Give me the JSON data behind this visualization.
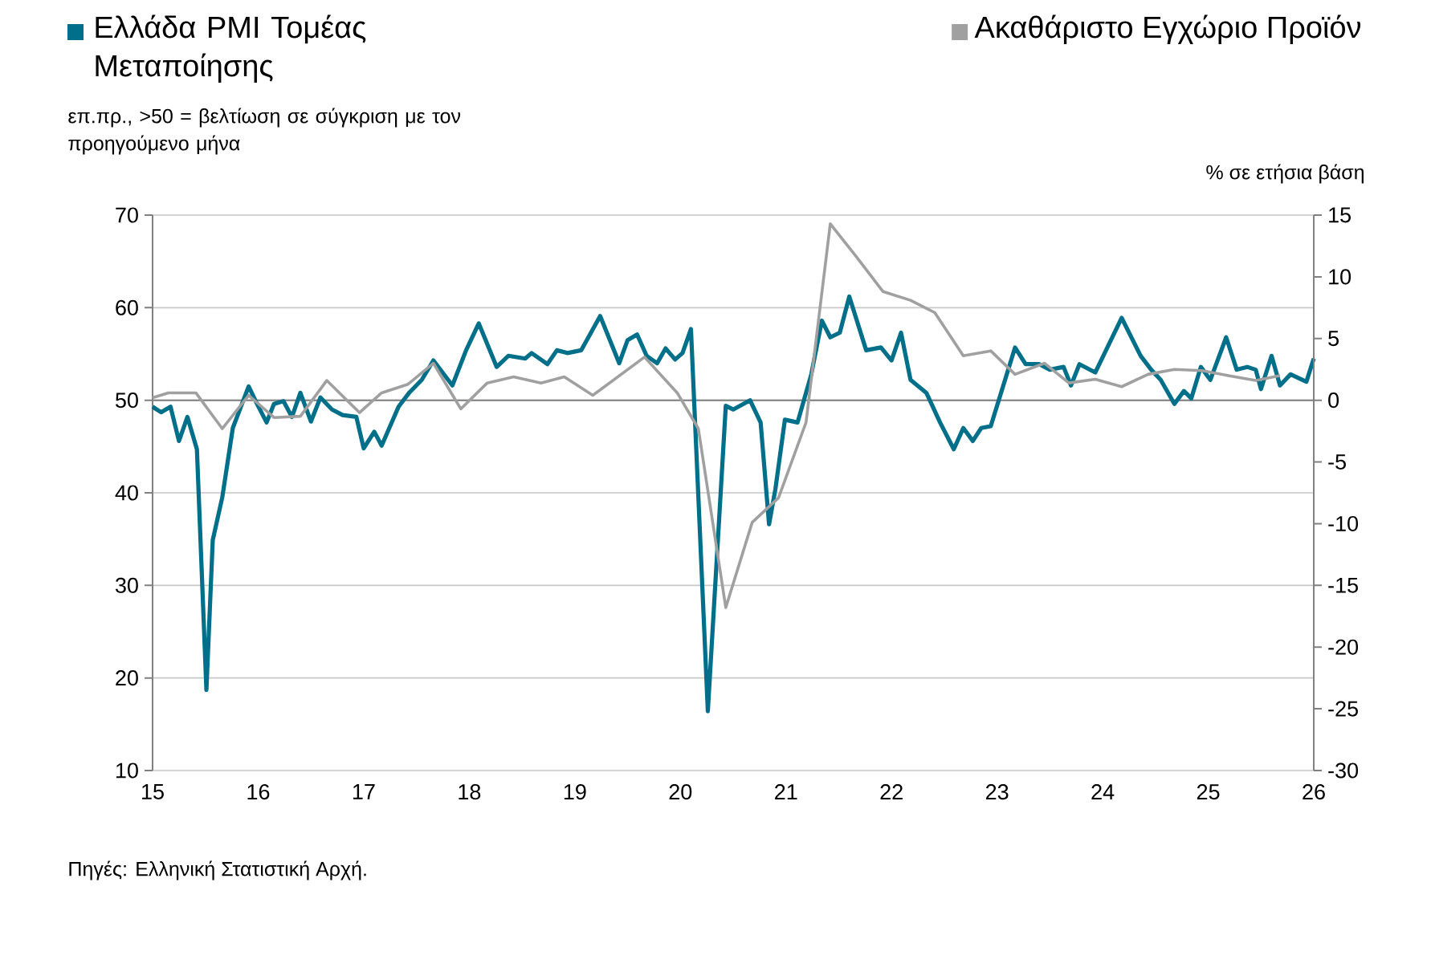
{
  "chart_data": {
    "type": "line",
    "ylabel": "επ.πρ., >50 = βελτίωση σε σύγκριση με τον προηγούμενο μήνα",
    "y2label": "% σε ετήσια βάση",
    "annotations": [
      "Πηγές: Ελληνική Στατιστική Αρχή."
    ],
    "legend": "top",
    "grid": "y",
    "line_style": "solid",
    "xlim": [
      2015,
      2026
    ],
    "xticks": [
      {
        "value": 2015,
        "label": "15"
      },
      {
        "value": 2016,
        "label": "16"
      },
      {
        "value": 2017,
        "label": "17"
      },
      {
        "value": 2018,
        "label": "18"
      },
      {
        "value": 2019,
        "label": "19"
      },
      {
        "value": 2020,
        "label": "20"
      },
      {
        "value": 2021,
        "label": "21"
      },
      {
        "value": 2022,
        "label": "22"
      },
      {
        "value": 2023,
        "label": "23"
      },
      {
        "value": 2024,
        "label": "24"
      },
      {
        "value": 2025,
        "label": "25"
      },
      {
        "value": 2026,
        "label": "26"
      }
    ],
    "ylim": [
      10,
      70
    ],
    "yticks": [
      10,
      20,
      30,
      40,
      50,
      60,
      70
    ],
    "y2lim": [
      -30,
      15
    ],
    "y2ticks": [
      -30,
      -25,
      -20,
      -15,
      -10,
      -5,
      0,
      5,
      10,
      15
    ],
    "ref_lines": [
      {
        "axis": "y",
        "value": 50,
        "color": "#808080"
      }
    ],
    "series": [
      {
        "name": "Ελλάδα PMI Τομέας Μεταποίησης",
        "color": "#006f8a",
        "x": [
          2015.0,
          2015.08,
          2015.17,
          2015.25,
          2015.33,
          2015.42,
          2015.51,
          2015.57,
          2015.66,
          2015.76,
          2015.91,
          2015.99,
          2016.08,
          2016.15,
          2016.24,
          2016.32,
          2016.4,
          2016.5,
          2016.59,
          2016.7,
          2016.8,
          2016.93,
          2017.0,
          2017.1,
          2017.17,
          2017.33,
          2017.43,
          2017.55,
          2017.66,
          2017.84,
          2017.97,
          2018.09,
          2018.26,
          2018.37,
          2018.53,
          2018.59,
          2018.74,
          2018.83,
          2018.93,
          2019.06,
          2019.24,
          2019.42,
          2019.5,
          2019.59,
          2019.68,
          2019.78,
          2019.86,
          2019.95,
          2020.02,
          2020.1,
          2020.26,
          2020.43,
          2020.5,
          2020.66,
          2020.76,
          2020.84,
          2020.9,
          2020.99,
          2021.11,
          2021.24,
          2021.34,
          2021.42,
          2021.51,
          2021.6,
          2021.76,
          2021.9,
          2022.0,
          2022.09,
          2022.18,
          2022.33,
          2022.46,
          2022.59,
          2022.68,
          2022.77,
          2022.85,
          2022.94,
          2023.17,
          2023.27,
          2023.4,
          2023.5,
          2023.63,
          2023.7,
          2023.78,
          2023.93,
          2024.18,
          2024.36,
          2024.46,
          2024.55,
          2024.68,
          2024.77,
          2024.84,
          2024.93,
          2025.02,
          2025.17,
          2025.27,
          2025.37,
          2025.45,
          2025.5,
          2025.6,
          2025.68,
          2025.78,
          2025.93,
          2026.0
        ],
        "values": [
          49.3,
          48.7,
          49.3,
          45.6,
          48.2,
          44.7,
          18.7,
          34.9,
          39.5,
          47.0,
          51.5,
          49.6,
          47.6,
          49.6,
          49.9,
          48.2,
          50.8,
          47.7,
          50.3,
          49.0,
          48.4,
          48.2,
          44.8,
          46.6,
          45.1,
          49.3,
          50.8,
          52.2,
          54.3,
          51.6,
          55.4,
          58.3,
          53.6,
          54.8,
          54.5,
          55.1,
          53.9,
          55.4,
          55.1,
          55.4,
          59.1,
          54.0,
          56.5,
          57.1,
          54.8,
          54.0,
          55.6,
          54.4,
          55.1,
          57.7,
          16.4,
          49.4,
          49.0,
          50.0,
          47.6,
          36.6,
          40.4,
          47.9,
          47.6,
          52.8,
          58.6,
          56.8,
          57.3,
          61.2,
          55.4,
          55.7,
          54.3,
          57.3,
          52.2,
          50.8,
          47.6,
          44.7,
          47.0,
          45.6,
          47.0,
          47.2,
          55.7,
          53.9,
          53.9,
          53.3,
          53.6,
          51.6,
          53.9,
          53.0,
          58.9,
          54.8,
          53.3,
          52.2,
          49.6,
          51.0,
          50.2,
          53.6,
          52.2,
          56.8,
          53.3,
          53.6,
          53.3,
          51.2,
          54.8,
          51.6,
          52.8,
          52.0,
          54.5
        ]
      },
      {
        "name": "Ακαθάριστο Εγχώριο Προϊόν",
        "color": "#a0a0a0",
        "axis": "y2",
        "x": [
          2015.0,
          2015.15,
          2015.41,
          2015.66,
          2015.91,
          2016.15,
          2016.4,
          2016.65,
          2016.96,
          2017.17,
          2017.42,
          2017.66,
          2017.92,
          2018.17,
          2018.42,
          2018.68,
          2018.9,
          2019.17,
          2019.66,
          2019.97,
          2020.17,
          2020.43,
          2020.68,
          2020.93,
          2021.19,
          2021.42,
          2021.67,
          2021.92,
          2022.18,
          2022.41,
          2022.68,
          2022.94,
          2023.17,
          2023.45,
          2023.68,
          2023.93,
          2024.18,
          2024.43,
          2024.68,
          2024.94,
          2025.19,
          2025.45,
          2025.68
        ],
        "values": [
          0.2,
          0.6,
          0.6,
          -2.3,
          0.4,
          -1.4,
          -1.3,
          1.6,
          -1.0,
          0.6,
          1.3,
          3.0,
          -0.7,
          1.4,
          1.9,
          1.4,
          1.9,
          0.4,
          3.5,
          0.6,
          -2.3,
          -16.8,
          -9.9,
          -7.9,
          -1.8,
          14.3,
          11.6,
          8.8,
          8.1,
          7.1,
          3.6,
          4.0,
          2.1,
          3.0,
          1.4,
          1.7,
          1.1,
          2.1,
          2.5,
          2.4,
          2.0,
          1.6,
          2.0
        ]
      }
    ]
  }
}
